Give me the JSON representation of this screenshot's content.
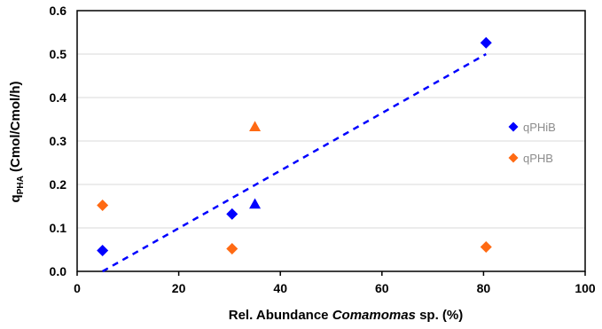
{
  "chart_data": {
    "type": "scatter",
    "xlabel_parts": [
      "Rel. Abundance ",
      "Comamomas",
      " sp. (%)"
    ],
    "ylabel_parts": [
      "q",
      "PHA",
      " (Cmol/Cmol/h)"
    ],
    "xlim": [
      0,
      100
    ],
    "ylim": [
      0.0,
      0.6
    ],
    "x_ticks": [
      "0",
      "20",
      "40",
      "60",
      "80",
      "100"
    ],
    "y_ticks": [
      "0.0",
      "0.1",
      "0.2",
      "0.3",
      "0.4",
      "0.5",
      "0.6"
    ],
    "x_tick_values": [
      0,
      20,
      40,
      60,
      80,
      100
    ],
    "y_tick_values": [
      0.0,
      0.1,
      0.2,
      0.3,
      0.4,
      0.5,
      0.6
    ],
    "grid": "horizontal",
    "legend_position": "right",
    "series": [
      {
        "name": "qPHiB",
        "color": "#0000ff",
        "marker": "diamond",
        "points": [
          {
            "x": 5,
            "y": 0.048
          },
          {
            "x": 30.5,
            "y": 0.132
          },
          {
            "x": 80.5,
            "y": 0.526
          }
        ]
      },
      {
        "name": "qPHB",
        "color": "#ff6a13",
        "marker": "diamond",
        "points": [
          {
            "x": 5,
            "y": 0.152
          },
          {
            "x": 30.5,
            "y": 0.052
          },
          {
            "x": 80.5,
            "y": 0.056
          }
        ]
      }
    ],
    "extra_points": [
      {
        "x": 35,
        "y": 0.155,
        "color": "#0000ff",
        "marker": "triangle"
      },
      {
        "x": 35,
        "y": 0.333,
        "color": "#ff6a13",
        "marker": "triangle"
      }
    ],
    "trendline": {
      "color": "#0000ff",
      "style": "dashed",
      "x": [
        5,
        80.5
      ],
      "y": 0.0,
      "y_end": 0.5
    }
  }
}
